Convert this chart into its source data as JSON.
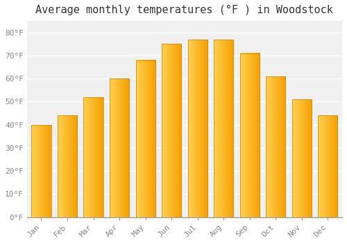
{
  "title": "Average monthly temperatures (°F ) in Woodstock",
  "months": [
    "Jan",
    "Feb",
    "Mar",
    "Apr",
    "May",
    "Jun",
    "Jul",
    "Aug",
    "Sep",
    "Oct",
    "Nov",
    "Dec"
  ],
  "values": [
    40,
    44,
    52,
    60,
    68,
    75,
    77,
    77,
    71,
    61,
    51,
    44
  ],
  "bar_color_left": "#FFD050",
  "bar_color_right": "#F5A000",
  "bar_edge_color": "#C8820A",
  "background_color": "#FFFFFF",
  "plot_bg_color": "#F0F0F0",
  "grid_color": "#FFFFFF",
  "ylim": [
    0,
    85
  ],
  "yticks": [
    0,
    10,
    20,
    30,
    40,
    50,
    60,
    70,
    80
  ],
  "title_fontsize": 11,
  "tick_fontsize": 8,
  "font_family": "monospace",
  "tick_color": "#888888"
}
